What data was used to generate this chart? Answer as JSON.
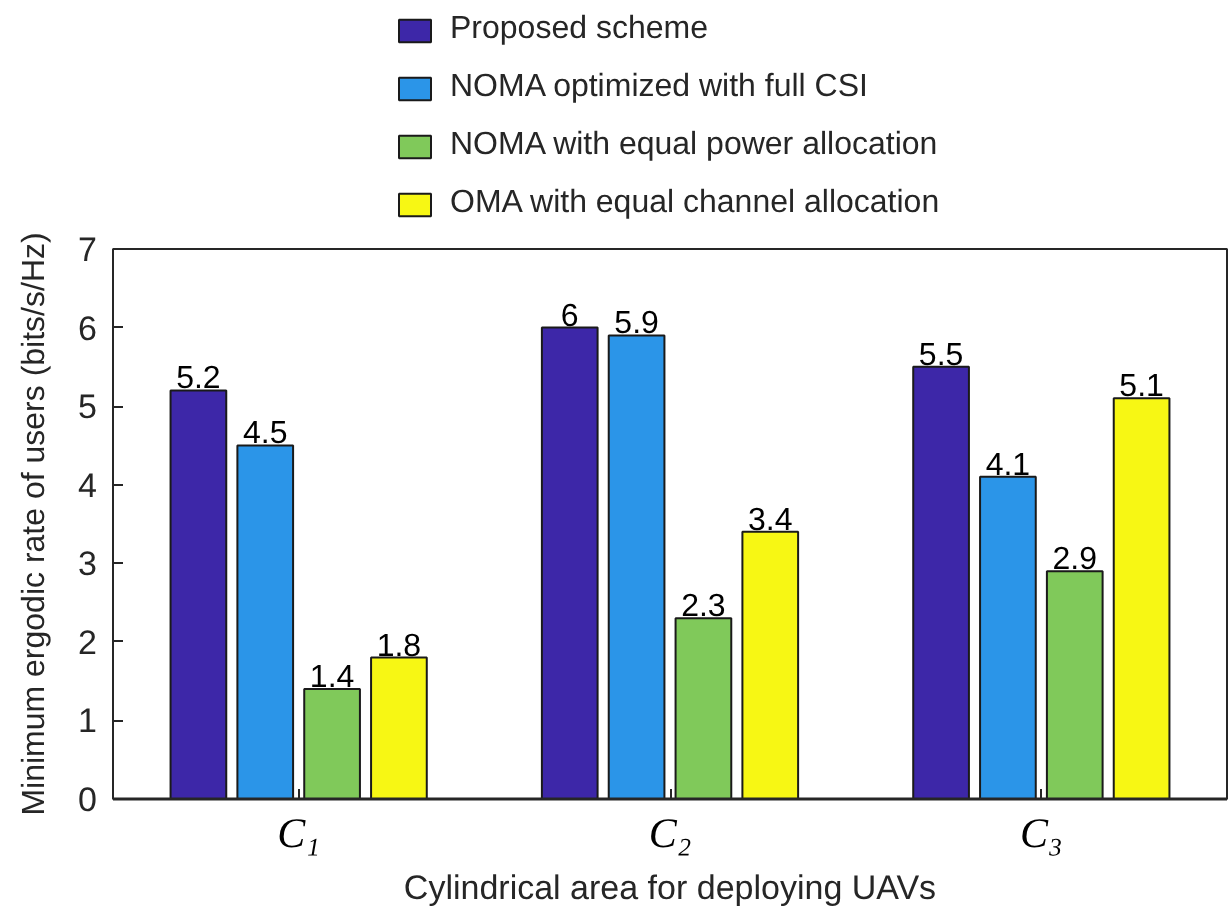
{
  "chart_data": {
    "type": "bar",
    "xlabel": "Cylindrical area for deploying UAVs",
    "ylabel": "Minimum ergodic rate of users (bits/s/Hz)",
    "categories": [
      "C₁",
      "C₂",
      "C₃"
    ],
    "series": [
      {
        "name": "Proposed scheme",
        "color": "#3d27a8",
        "values": [
          5.2,
          6,
          5.5
        ]
      },
      {
        "name": "NOMA optimized with full CSI",
        "color": "#2b95e8",
        "values": [
          4.5,
          5.9,
          4.1
        ]
      },
      {
        "name": "NOMA with equal power allocation",
        "color": "#80c95a",
        "values": [
          1.4,
          2.3,
          2.9
        ]
      },
      {
        "name": "OMA with equal channel allocation",
        "color": "#f7f714",
        "values": [
          1.8,
          3.4,
          5.1
        ]
      }
    ],
    "ylim": [
      0,
      7
    ],
    "yticks": [
      0,
      1,
      2,
      3,
      4,
      5,
      6,
      7
    ],
    "data_labels": true,
    "legend": "top",
    "grid": false
  }
}
